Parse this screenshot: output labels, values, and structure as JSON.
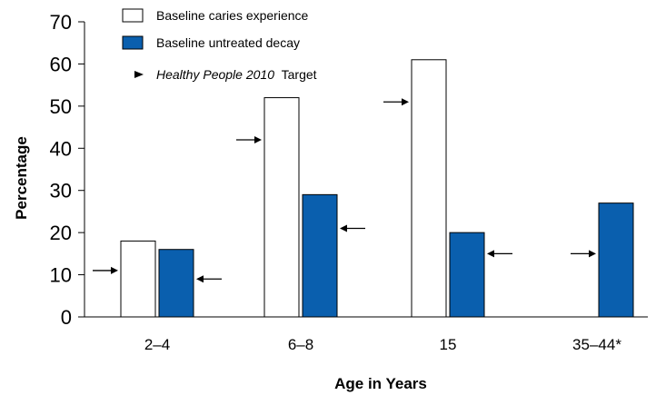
{
  "chart_data": {
    "type": "bar",
    "xlabel": "Age in Years",
    "ylabel": "Percentage",
    "ylim": [
      0,
      70
    ],
    "yticks": [
      0,
      10,
      20,
      30,
      40,
      50,
      60,
      70
    ],
    "categories": [
      "2–4",
      "6–8",
      "15",
      "35–44*"
    ],
    "series": [
      {
        "name": "Baseline caries experience",
        "color": "#ffffff",
        "values": [
          18,
          52,
          61,
          null
        ],
        "targets": [
          11,
          42,
          51,
          null
        ]
      },
      {
        "name": "Baseline untreated decay",
        "color": "#0a5fae",
        "values": [
          16,
          29,
          20,
          27
        ],
        "targets": [
          9,
          21,
          15,
          15
        ]
      }
    ],
    "legend": {
      "position": "top-left",
      "target_label_italic": "Healthy People 2010",
      "target_label_rest": "Target"
    },
    "grid": false
  }
}
